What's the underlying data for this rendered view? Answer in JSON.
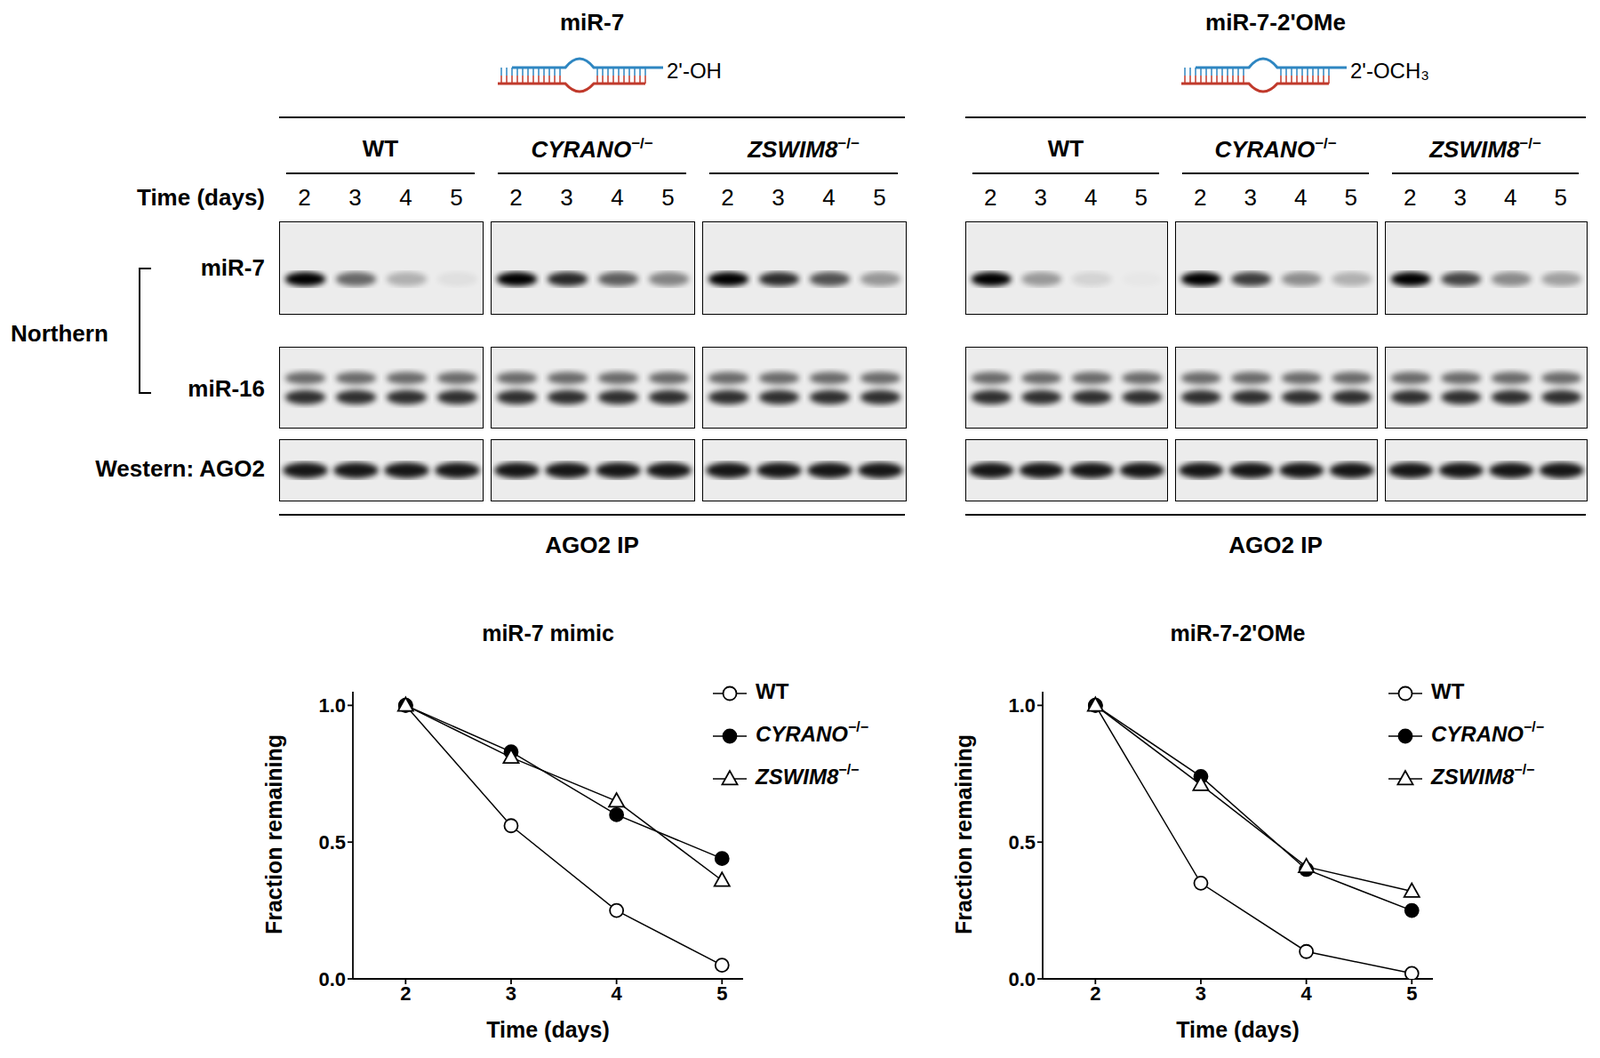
{
  "figure": {
    "row_labels": {
      "time": "Time (days)",
      "northern": "Northern",
      "probes": [
        "miR-7",
        "miR-16"
      ],
      "western": "Western: AGO2",
      "ip": "AGO2 IP"
    },
    "blots": [
      {
        "title": "miR-7",
        "modification": "2'-OH",
        "genotypes": [
          "WT",
          "CYRANO−/−",
          "ZSWIM8−/−"
        ],
        "times": [
          2,
          3,
          4,
          5
        ]
      },
      {
        "title": "miR-7-2'OMe",
        "modification": "2'-OCH₃",
        "genotypes": [
          "WT",
          "CYRANO−/−",
          "ZSWIM8−/−"
        ],
        "times": [
          2,
          3,
          4,
          5
        ]
      }
    ]
  },
  "chart_data": [
    {
      "type": "line",
      "title": "miR-7 mimic",
      "x_label": "Time (days)",
      "y_label": "Fraction remaining",
      "x": [
        2,
        3,
        4,
        5
      ],
      "series": [
        {
          "name": "WT",
          "color": "#000000",
          "marker": "open_circle",
          "values": [
            1.0,
            0.56,
            0.25,
            0.05
          ]
        },
        {
          "name": "CYRANO−/−",
          "color": "#000000",
          "marker": "filled_circle",
          "values": [
            1.0,
            0.83,
            0.6,
            0.44
          ]
        },
        {
          "name": "ZSWIM8−/−",
          "color": "#000000",
          "marker": "open_triangle",
          "values": [
            1.0,
            0.81,
            0.65,
            0.36
          ]
        }
      ],
      "xlim": [
        1.5,
        5.2
      ],
      "xticks": [
        2,
        3,
        4,
        5
      ],
      "ylim": [
        0,
        1.05
      ],
      "yticks": [
        {
          "value": 0,
          "label": "0.0"
        },
        {
          "value": 0.5,
          "label": "0.5"
        },
        {
          "value": 1,
          "label": "1.0"
        }
      ],
      "legend": "right",
      "grid": false
    },
    {
      "type": "line",
      "title": "miR-7-2'OMe",
      "x_label": "Time (days)",
      "y_label": "Fraction remaining",
      "x": [
        2,
        3,
        4,
        5
      ],
      "series": [
        {
          "name": "WT",
          "color": "#000000",
          "marker": "open_circle",
          "values": [
            1.0,
            0.35,
            0.1,
            0.02
          ]
        },
        {
          "name": "CYRANO−/−",
          "color": "#000000",
          "marker": "filled_circle",
          "values": [
            1.0,
            0.74,
            0.4,
            0.25
          ]
        },
        {
          "name": "ZSWIM8−/−",
          "color": "#000000",
          "marker": "open_triangle",
          "values": [
            1.0,
            0.71,
            0.41,
            0.32
          ]
        }
      ],
      "xlim": [
        1.5,
        5.2
      ],
      "xticks": [
        2,
        3,
        4,
        5
      ],
      "ylim": [
        0,
        1.05
      ],
      "yticks": [
        {
          "value": 0,
          "label": "0.0"
        },
        {
          "value": 0.5,
          "label": "0.5"
        },
        {
          "value": 1,
          "label": "1.0"
        }
      ],
      "legend": "right",
      "grid": false
    }
  ]
}
